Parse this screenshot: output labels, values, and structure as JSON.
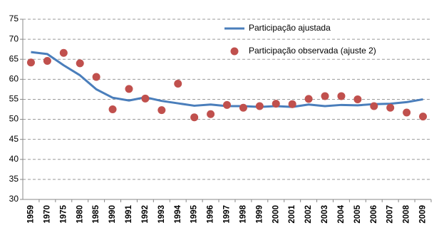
{
  "chart_data": {
    "type": "line",
    "categories": [
      "1959",
      "1970",
      "1975",
      "1980",
      "1985",
      "1990",
      "1991",
      "1992",
      "1993",
      "1994",
      "1995",
      "1996",
      "1997",
      "1998",
      "1999",
      "2000",
      "2001",
      "2002",
      "2003",
      "2004",
      "2005",
      "2006",
      "2007",
      "2008",
      "2009"
    ],
    "series": [
      {
        "name": "Participação ajustada",
        "color": "#4a7ebb",
        "style": "line",
        "values": [
          66.8,
          66.3,
          63.5,
          61.0,
          57.5,
          55.4,
          54.7,
          55.5,
          54.6,
          54.0,
          53.4,
          53.7,
          53.3,
          53.3,
          53.1,
          53.3,
          53.1,
          53.7,
          53.3,
          53.6,
          53.5,
          53.8,
          53.9,
          54.3,
          55.0
        ]
      },
      {
        "name": "Participação observada (ajuste 2)",
        "color": "#c0504d",
        "style": "points",
        "values": [
          64.2,
          64.6,
          66.6,
          64.0,
          60.6,
          52.5,
          57.6,
          55.2,
          52.3,
          58.9,
          50.5,
          51.3,
          53.6,
          52.9,
          53.3,
          53.9,
          53.8,
          55.1,
          55.8,
          55.8,
          55.0,
          53.3,
          52.9,
          51.7,
          50.7
        ]
      }
    ],
    "ylim": [
      30,
      75
    ],
    "yticks": [
      30,
      35,
      40,
      45,
      50,
      55,
      60,
      65,
      70,
      75
    ],
    "grid": true,
    "legend": "top-right"
  }
}
